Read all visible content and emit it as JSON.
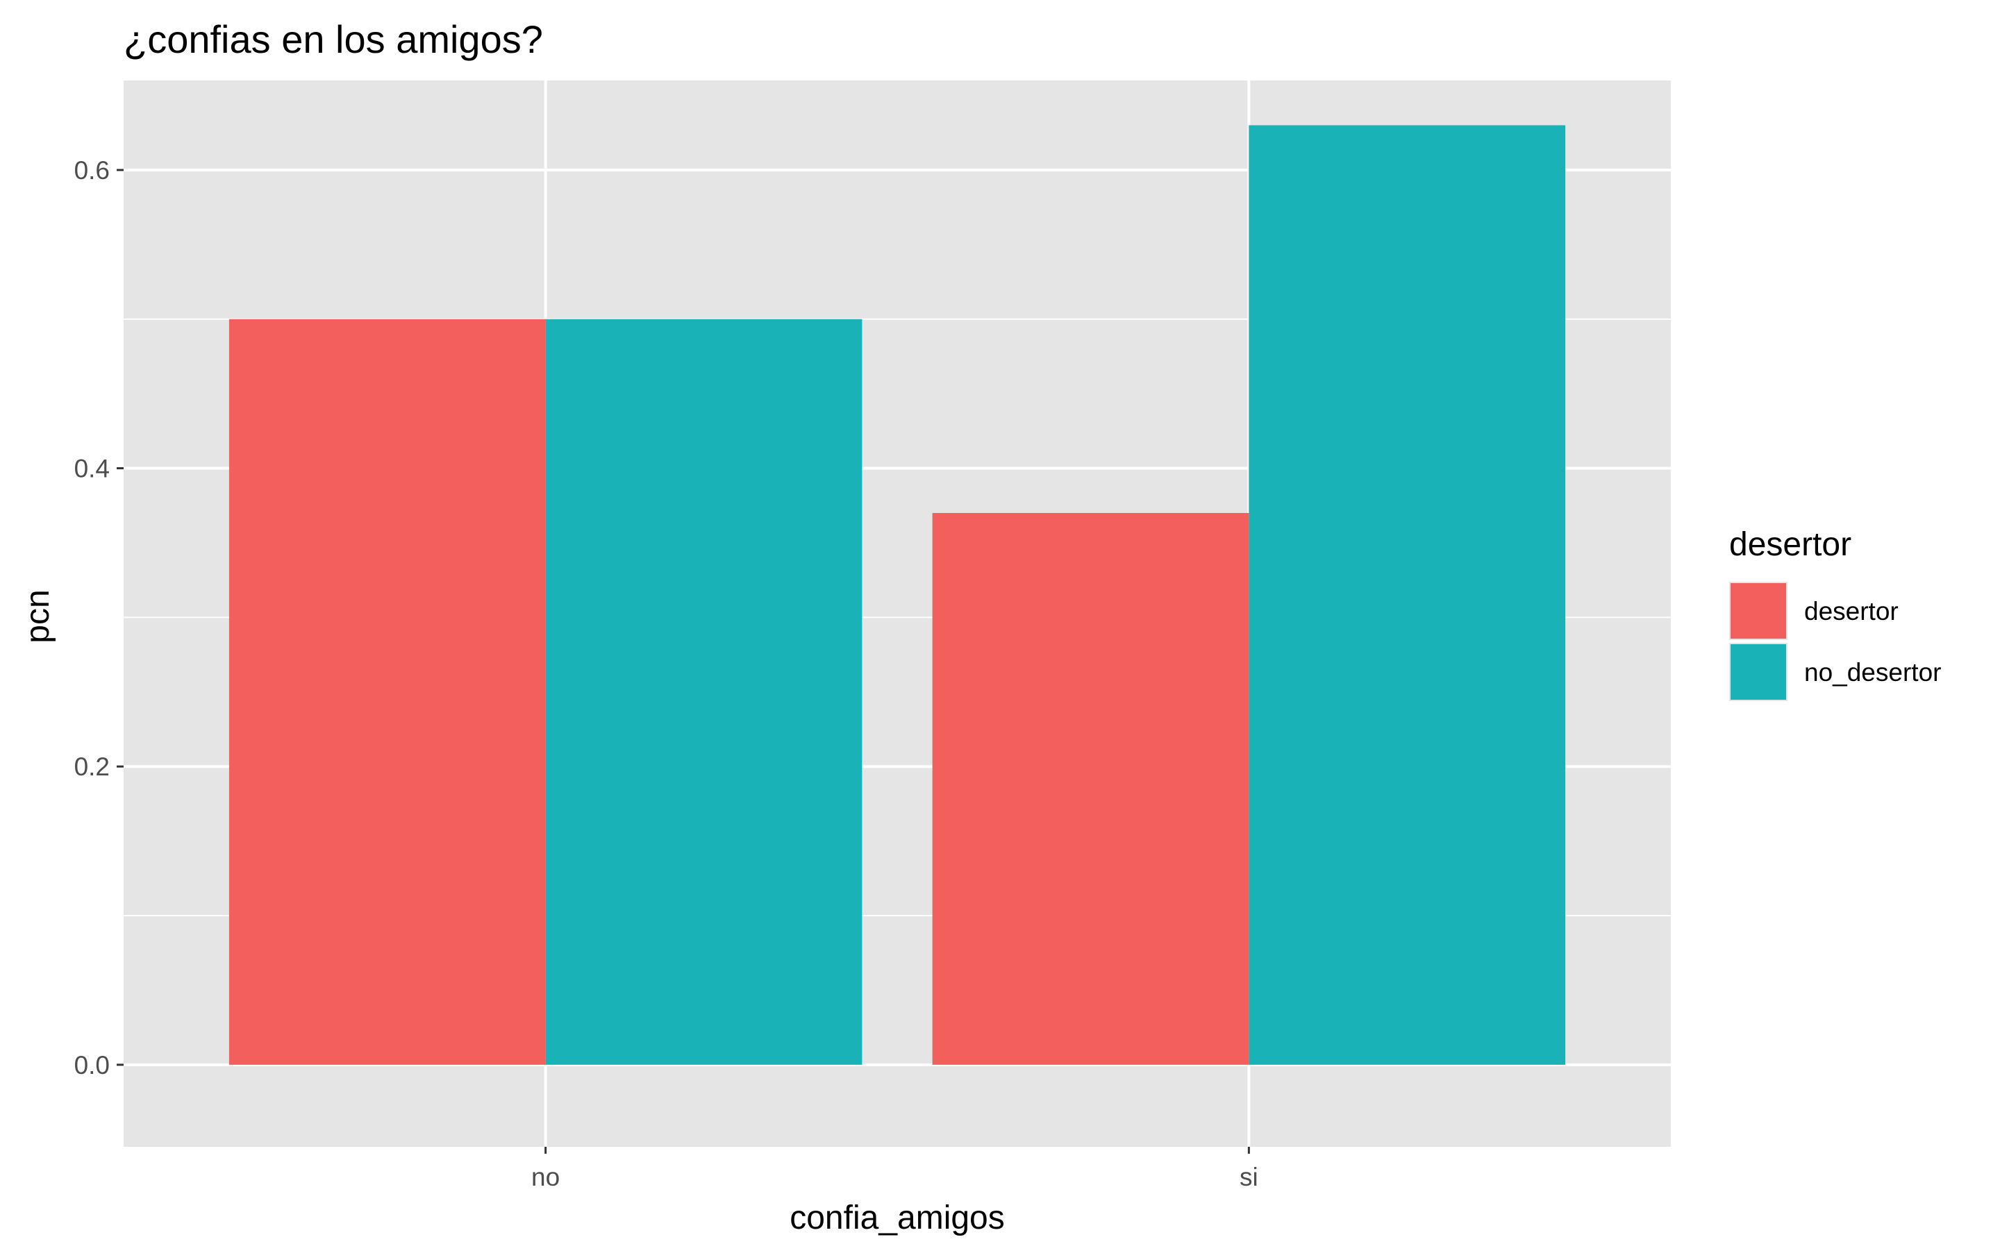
{
  "chart_data": {
    "type": "bar",
    "title": "¿confias en los amigos?",
    "xlabel": "confia_amigos",
    "ylabel": "pcn",
    "categories": [
      "no",
      "si"
    ],
    "series": [
      {
        "name": "desertor",
        "values": [
          0.5,
          0.37
        ],
        "color": "#F25F5C"
      },
      {
        "name": "no_desertor",
        "values": [
          0.5,
          0.63
        ],
        "color": "#19B2B7"
      }
    ],
    "ylim": [
      -0.055,
      0.66
    ],
    "yticks": [
      0.0,
      0.2,
      0.4,
      0.6
    ],
    "ytick_labels": [
      "0.0",
      "0.2",
      "0.4",
      "0.6"
    ],
    "grid": true,
    "legend": {
      "title": "desertor",
      "position": "right"
    },
    "panel_background": "#E5E5E5",
    "grid_color": "#FFFFFF"
  }
}
